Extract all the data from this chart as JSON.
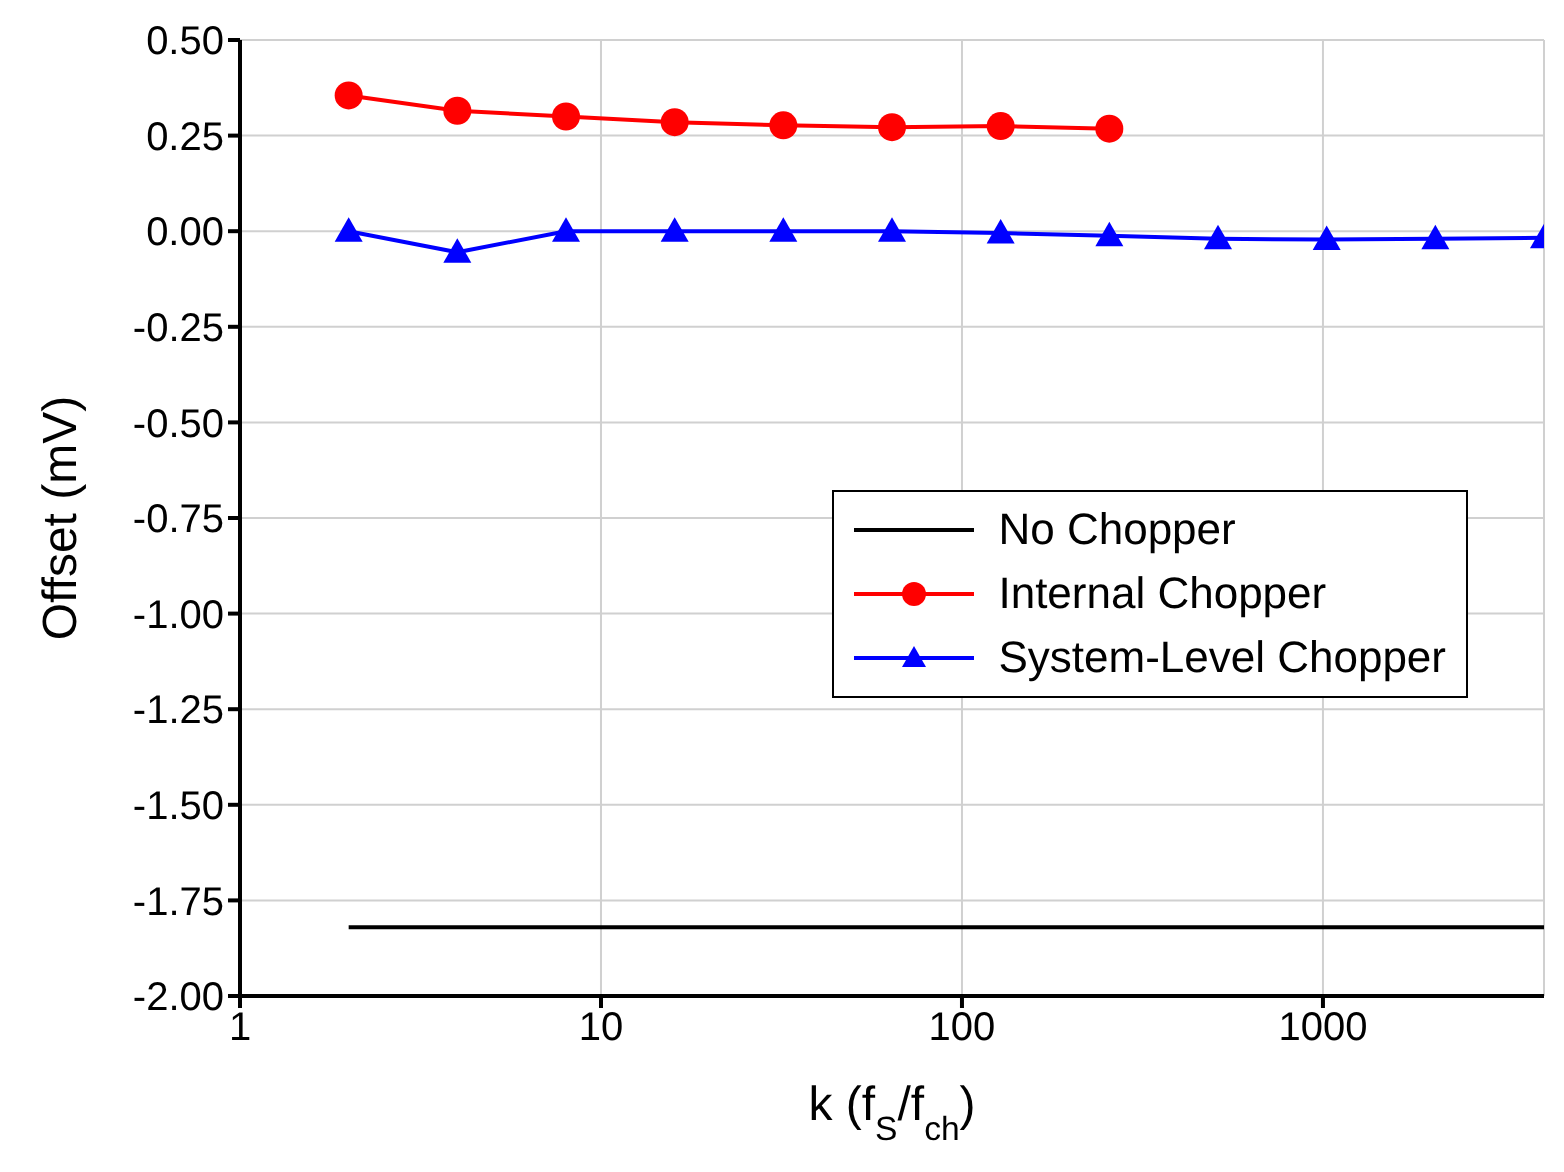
{
  "chart_data": {
    "type": "line",
    "xlabel": "k (f$_{S}$/f$_{ch}$)",
    "ylabel": "Offset (mV)",
    "log": "x",
    "grid": true,
    "legend": "center right",
    "xlim": [
      1,
      4096
    ],
    "xticks": [
      1,
      10,
      100,
      1000
    ],
    "ylim": [
      -2,
      0.5
    ],
    "yticks": [
      {
        "value": 0.5,
        "label": "0.50"
      },
      {
        "value": 0.25,
        "label": "0.25"
      },
      {
        "value": 0,
        "label": "0.00"
      },
      {
        "value": -0.25,
        "label": "-0.25"
      },
      {
        "value": -0.5,
        "label": "-0.50"
      },
      {
        "value": -0.75,
        "label": "-0.75"
      },
      {
        "value": -1,
        "label": "-1.00"
      },
      {
        "value": -1.25,
        "label": "-1.25"
      },
      {
        "value": -1.5,
        "label": "-1.50"
      },
      {
        "value": -1.75,
        "label": "-1.75"
      },
      {
        "value": -2,
        "label": "-2.00"
      }
    ],
    "series": [
      {
        "name": "No Chopper",
        "color": "#000000",
        "marker": "none",
        "x": [
          2,
          4096
        ],
        "values": [
          -1.82,
          -1.82
        ]
      },
      {
        "name": "Internal Chopper",
        "color": "#ff0000",
        "marker": "circle",
        "x": [
          2,
          4,
          8,
          16,
          32,
          64,
          128,
          256
        ],
        "values": [
          0.355,
          0.315,
          0.3,
          0.285,
          0.277,
          0.272,
          0.275,
          0.268
        ]
      },
      {
        "name": "System-Level Chopper",
        "color": "#0000ff",
        "marker": "triangle",
        "x": [
          2,
          4,
          8,
          16,
          32,
          64,
          128,
          256,
          512,
          1024,
          2048,
          4096
        ],
        "values": [
          0,
          -0.055,
          0,
          0,
          0,
          0,
          -0.005,
          -0.012,
          -0.02,
          -0.022,
          -0.02,
          -0.017
        ]
      }
    ]
  }
}
